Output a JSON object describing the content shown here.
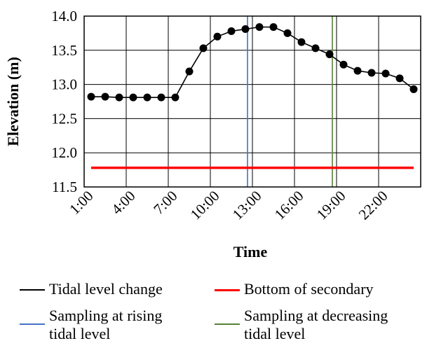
{
  "chart_data": {
    "type": "line",
    "xlabel": "Time",
    "ylabel": "Elevation (m)",
    "ylim": [
      11.5,
      14.0
    ],
    "yticks": [
      "11.5",
      "12.0",
      "12.5",
      "13.0",
      "13.5",
      "14.0"
    ],
    "xticks": [
      "1:00",
      "4:00",
      "7:00",
      "10:00",
      "13:00",
      "16:00",
      "19:00",
      "22:00"
    ],
    "x": [
      "1:00",
      "2:00",
      "3:00",
      "4:00",
      "5:00",
      "6:00",
      "7:00",
      "8:00",
      "9:00",
      "10:00",
      "11:00",
      "12:00",
      "13:00",
      "14:00",
      "15:00",
      "16:00",
      "17:00",
      "18:00",
      "19:00",
      "20:00",
      "21:00",
      "22:00",
      "23:00",
      "24:00"
    ],
    "grid": true,
    "series": [
      {
        "name": "Tidal level change",
        "color": "#000000",
        "marker": "circle",
        "values": [
          12.82,
          12.82,
          12.81,
          12.81,
          12.81,
          12.81,
          12.81,
          13.19,
          13.53,
          13.7,
          13.78,
          13.81,
          13.84,
          13.84,
          13.75,
          13.62,
          13.53,
          13.44,
          13.29,
          13.2,
          13.17,
          13.16,
          13.09,
          12.93
        ]
      },
      {
        "name": "Bottom of secondary",
        "color": "#ff0000",
        "constant": 11.78
      }
    ],
    "vlines": [
      {
        "name": "Sampling at rising tidal level",
        "color": "#4472c4",
        "x": 12.15
      },
      {
        "name": "Sampling at decreasing tidal level",
        "color": "#548235",
        "x": 18.2
      }
    ],
    "legend": {
      "placement": "bottom",
      "items": [
        {
          "label": "Tidal level change",
          "color": "#000000"
        },
        {
          "label": "Bottom of secondary",
          "color": "#ff0000"
        },
        {
          "label": "Sampling at rising\ntidal level",
          "color": "#4472c4"
        },
        {
          "label": "Sampling at decreasing\ntidal level",
          "color": "#548235"
        }
      ]
    }
  }
}
